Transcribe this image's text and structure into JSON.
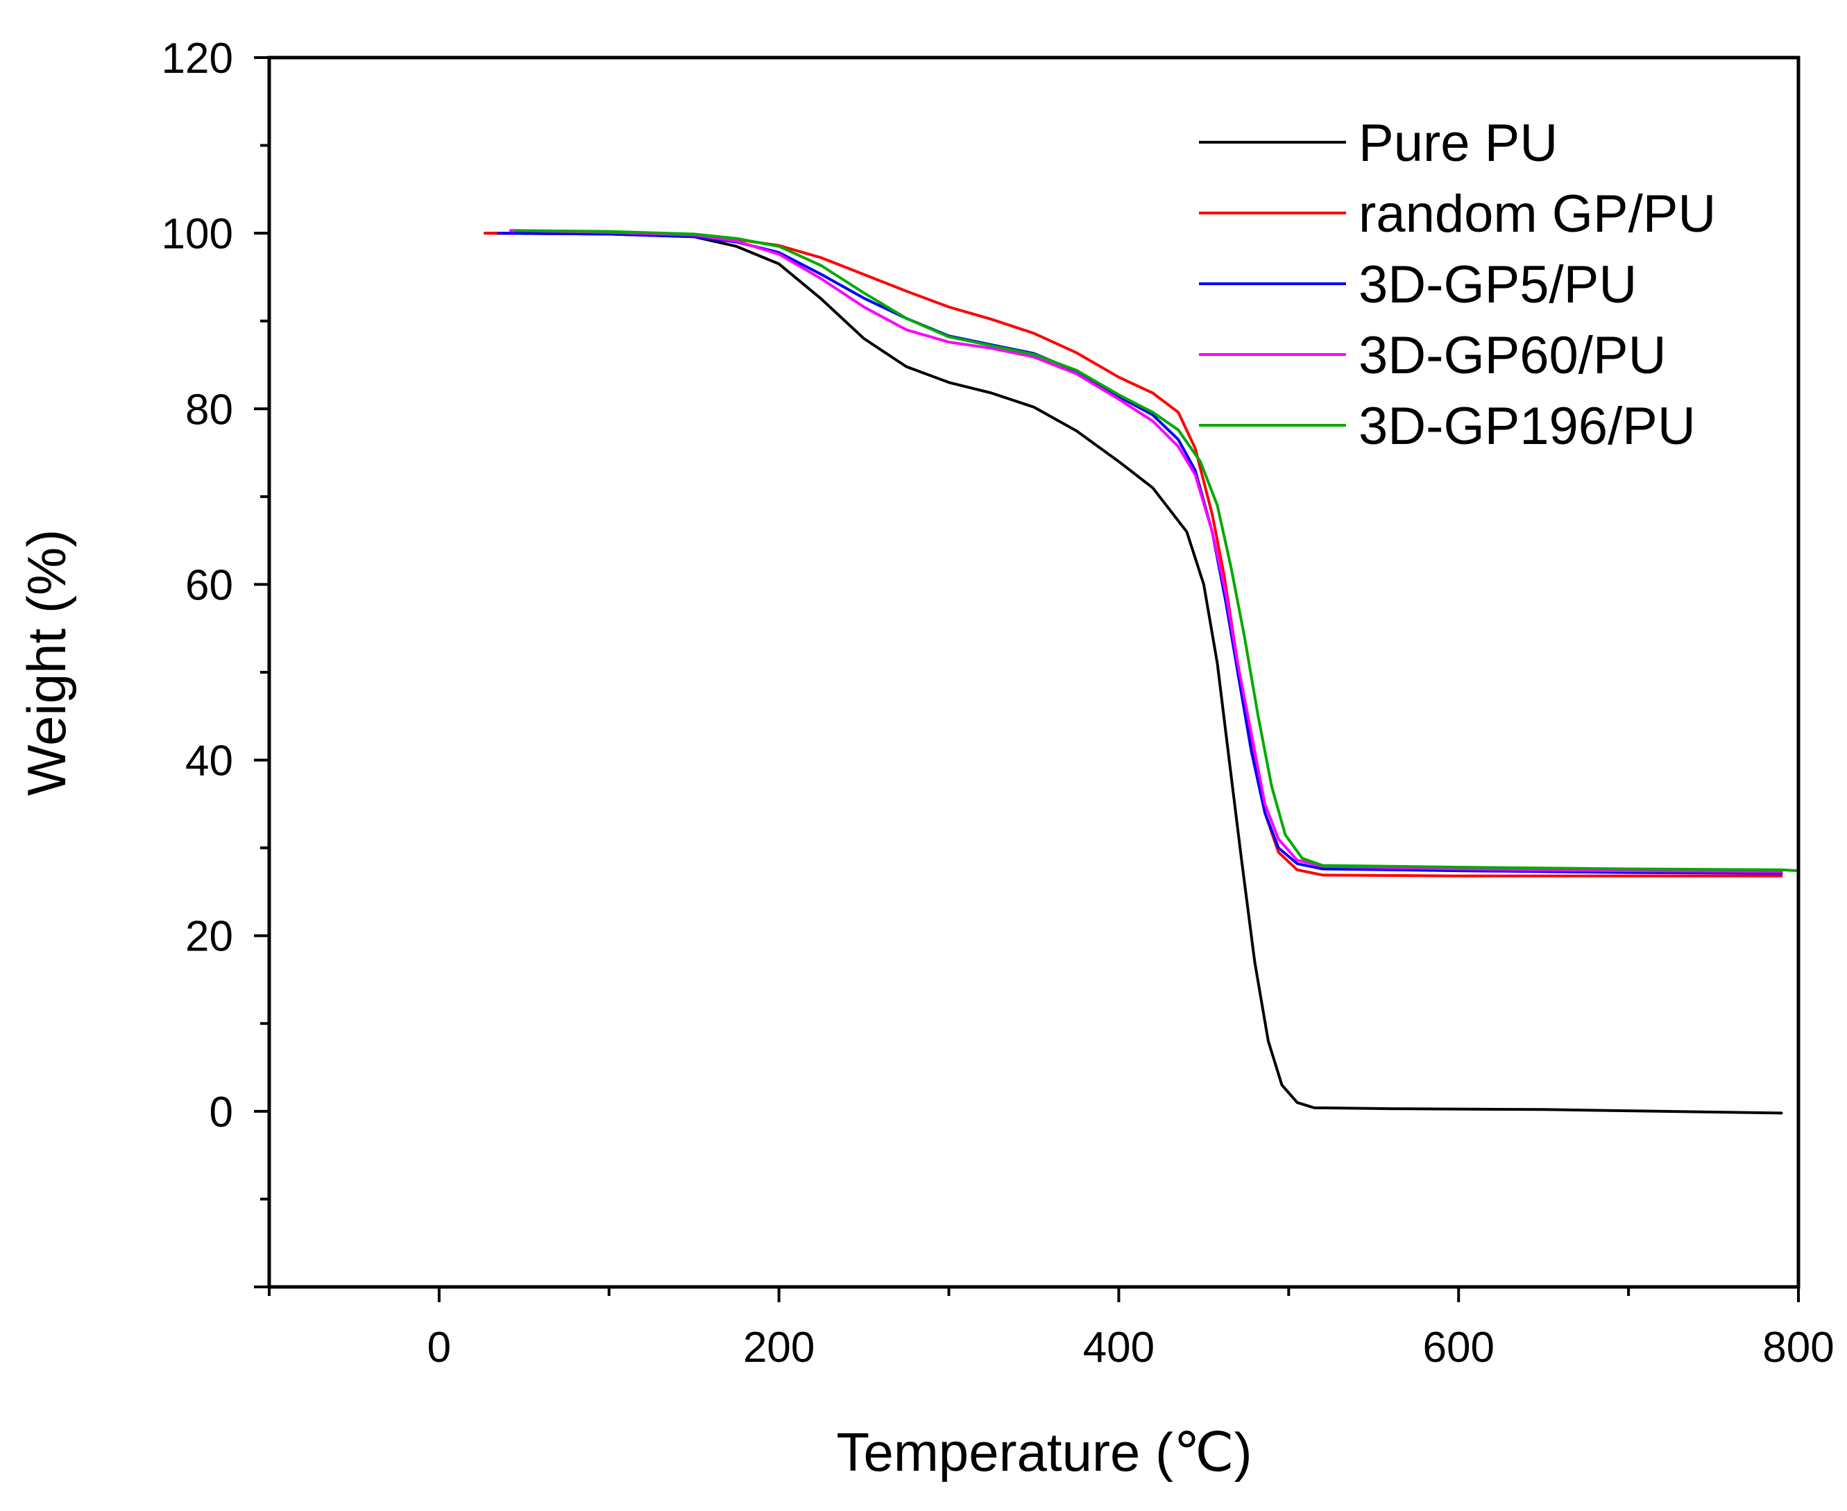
{
  "chart_data": {
    "type": "line",
    "title": "",
    "xlabel": "Temperature (℃)",
    "ylabel": "Weight (%)",
    "xlim": [
      -100,
      800
    ],
    "ylim": [
      -20,
      120
    ],
    "x_ticks": [
      0,
      200,
      400,
      600,
      800
    ],
    "y_ticks": [
      0,
      20,
      40,
      60,
      80,
      100,
      120
    ],
    "x_tick_labels": [
      "0",
      "200",
      "400",
      "600",
      "800"
    ],
    "y_tick_labels": [
      "0",
      "20",
      "40",
      "60",
      "80",
      "100",
      "120"
    ],
    "grid": false,
    "legend_position": "top-right",
    "series": [
      {
        "name": "Pure PU",
        "color": "#000000",
        "points": [
          [
            27,
            100
          ],
          [
            100,
            99.9
          ],
          [
            150,
            99.6
          ],
          [
            175,
            98.5
          ],
          [
            200,
            96.5
          ],
          [
            225,
            92.5
          ],
          [
            250,
            88
          ],
          [
            275,
            84.8
          ],
          [
            300,
            83
          ],
          [
            325,
            81.8
          ],
          [
            350,
            80.2
          ],
          [
            375,
            77.5
          ],
          [
            400,
            74
          ],
          [
            420,
            71
          ],
          [
            440,
            66
          ],
          [
            450,
            60
          ],
          [
            458,
            51
          ],
          [
            465,
            40
          ],
          [
            472,
            29
          ],
          [
            480,
            17
          ],
          [
            488,
            8
          ],
          [
            496,
            3
          ],
          [
            505,
            1
          ],
          [
            515,
            0.4
          ],
          [
            560,
            0.3
          ],
          [
            650,
            0.2
          ],
          [
            790,
            -0.2
          ]
        ]
      },
      {
        "name": "random GP/PU",
        "color": "#ff0000",
        "points": [
          [
            27,
            100
          ],
          [
            100,
            99.9
          ],
          [
            150,
            99.7
          ],
          [
            175,
            99.3
          ],
          [
            200,
            98.6
          ],
          [
            225,
            97.2
          ],
          [
            250,
            95.3
          ],
          [
            275,
            93.4
          ],
          [
            300,
            91.6
          ],
          [
            325,
            90.2
          ],
          [
            350,
            88.6
          ],
          [
            375,
            86.4
          ],
          [
            400,
            83.6
          ],
          [
            420,
            81.8
          ],
          [
            435,
            79.6
          ],
          [
            445,
            75.5
          ],
          [
            455,
            68
          ],
          [
            462,
            61
          ],
          [
            470,
            51
          ],
          [
            478,
            42
          ],
          [
            486,
            34
          ],
          [
            494,
            29.5
          ],
          [
            505,
            27.5
          ],
          [
            520,
            26.9
          ],
          [
            600,
            26.8
          ],
          [
            700,
            26.8
          ],
          [
            790,
            26.8
          ]
        ]
      },
      {
        "name": "3D-GP5/PU",
        "color": "#0000ff",
        "points": [
          [
            35,
            100
          ],
          [
            100,
            99.9
          ],
          [
            150,
            99.6
          ],
          [
            175,
            99
          ],
          [
            200,
            97.8
          ],
          [
            225,
            95.3
          ],
          [
            250,
            92.6
          ],
          [
            275,
            90.3
          ],
          [
            300,
            88.3
          ],
          [
            325,
            87.3
          ],
          [
            350,
            86.3
          ],
          [
            375,
            84.3
          ],
          [
            400,
            81.4
          ],
          [
            420,
            79.3
          ],
          [
            435,
            76.5
          ],
          [
            445,
            73
          ],
          [
            455,
            66
          ],
          [
            463,
            58
          ],
          [
            470,
            50
          ],
          [
            478,
            41
          ],
          [
            486,
            34
          ],
          [
            494,
            30
          ],
          [
            505,
            28.2
          ],
          [
            520,
            27.6
          ],
          [
            600,
            27.4
          ],
          [
            700,
            27.2
          ],
          [
            790,
            27.1
          ]
        ]
      },
      {
        "name": "3D-GP60/PU",
        "color": "#ff00ff",
        "points": [
          [
            42,
            100.3
          ],
          [
            100,
            100.1
          ],
          [
            150,
            99.8
          ],
          [
            175,
            99.1
          ],
          [
            200,
            97.6
          ],
          [
            225,
            94.8
          ],
          [
            250,
            91.6
          ],
          [
            275,
            89
          ],
          [
            300,
            87.6
          ],
          [
            325,
            86.9
          ],
          [
            350,
            85.9
          ],
          [
            375,
            84
          ],
          [
            400,
            81.1
          ],
          [
            420,
            78.6
          ],
          [
            435,
            75.7
          ],
          [
            445,
            72.5
          ],
          [
            455,
            66
          ],
          [
            463,
            59
          ],
          [
            470,
            51
          ],
          [
            478,
            43
          ],
          [
            486,
            35
          ],
          [
            494,
            31
          ],
          [
            505,
            28.6
          ],
          [
            520,
            27.9
          ],
          [
            600,
            27.6
          ],
          [
            700,
            27.4
          ],
          [
            790,
            27.3
          ]
        ]
      },
      {
        "name": "3D-GP196/PU",
        "color": "#00aa00",
        "points": [
          [
            45,
            100.3
          ],
          [
            100,
            100.2
          ],
          [
            150,
            99.9
          ],
          [
            175,
            99.4
          ],
          [
            200,
            98.5
          ],
          [
            225,
            96.3
          ],
          [
            250,
            93.2
          ],
          [
            275,
            90.3
          ],
          [
            300,
            88.2
          ],
          [
            325,
            87.2
          ],
          [
            350,
            86.2
          ],
          [
            375,
            84.4
          ],
          [
            400,
            81.6
          ],
          [
            420,
            79.6
          ],
          [
            435,
            77.6
          ],
          [
            448,
            74
          ],
          [
            458,
            69
          ],
          [
            466,
            62
          ],
          [
            474,
            54
          ],
          [
            482,
            45
          ],
          [
            490,
            37
          ],
          [
            498,
            31.5
          ],
          [
            508,
            28.8
          ],
          [
            520,
            28
          ],
          [
            600,
            27.8
          ],
          [
            700,
            27.6
          ],
          [
            790,
            27.5
          ],
          [
            800,
            27.4
          ]
        ]
      }
    ]
  }
}
